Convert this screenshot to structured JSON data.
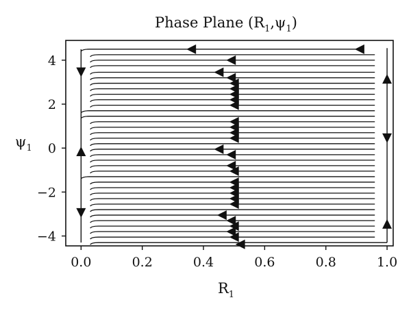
{
  "chart_data": {
    "type": "streamplot",
    "title": "Phase Plane (R",
    "title_sub1": "1",
    "title_mid": ",ψ",
    "title_sub2": "1",
    "title_end": ")",
    "xlabel": "R",
    "xlabel_sub": "1",
    "ylabel": "ψ",
    "ylabel_sub": "1",
    "xlim": [
      -0.05,
      1.02
    ],
    "ylim": [
      -4.45,
      4.9
    ],
    "xticks": [
      0.0,
      0.2,
      0.4,
      0.6,
      0.8,
      1.0
    ],
    "xtick_labels": [
      "0.0",
      "0.2",
      "0.4",
      "0.6",
      "0.8",
      "1.0"
    ],
    "yticks": [
      4,
      2,
      0,
      -2,
      -4
    ],
    "ytick_labels": [
      "4",
      "2",
      "0",
      "−2",
      "−4"
    ],
    "grid": false,
    "line_color": "#111111",
    "streamlines": [
      {
        "y": 4.5,
        "x_start": 0.92,
        "x_end": 0.0
      },
      {
        "y": 4.25,
        "x_start": 0.96,
        "x_end": 0.03
      },
      {
        "y": 4.0,
        "x_start": 0.96,
        "x_end": 0.03
      },
      {
        "y": 3.75,
        "x_start": 0.96,
        "x_end": 0.03
      },
      {
        "y": 3.45,
        "x_start": 0.96,
        "x_end": 0.03
      },
      {
        "y": 3.2,
        "x_start": 0.96,
        "x_end": 0.03
      },
      {
        "y": 2.95,
        "x_start": 0.96,
        "x_end": 0.03
      },
      {
        "y": 2.7,
        "x_start": 0.96,
        "x_end": 0.03
      },
      {
        "y": 2.45,
        "x_start": 0.96,
        "x_end": 0.03
      },
      {
        "y": 2.2,
        "x_start": 0.96,
        "x_end": 0.03
      },
      {
        "y": 1.95,
        "x_start": 0.96,
        "x_end": 0.03
      },
      {
        "y": 1.7,
        "x_start": 0.96,
        "x_end": 0.0
      },
      {
        "y": 1.45,
        "x_start": 0.96,
        "x_end": 0.0
      },
      {
        "y": 1.2,
        "x_start": 0.96,
        "x_end": 0.03
      },
      {
        "y": 0.95,
        "x_start": 0.96,
        "x_end": 0.03
      },
      {
        "y": 0.7,
        "x_start": 0.96,
        "x_end": 0.03
      },
      {
        "y": 0.45,
        "x_start": 0.96,
        "x_end": 0.03
      },
      {
        "y": 0.2,
        "x_start": 0.96,
        "x_end": 0.03
      },
      {
        "y": -0.05,
        "x_start": 0.96,
        "x_end": 0.03
      },
      {
        "y": -0.3,
        "x_start": 0.96,
        "x_end": 0.03
      },
      {
        "y": -0.55,
        "x_start": 0.96,
        "x_end": 0.03
      },
      {
        "y": -0.8,
        "x_start": 0.96,
        "x_end": 0.03
      },
      {
        "y": -1.05,
        "x_start": 0.96,
        "x_end": 0.03
      },
      {
        "y": -1.3,
        "x_start": 0.96,
        "x_end": 0.0
      },
      {
        "y": -1.55,
        "x_start": 0.96,
        "x_end": 0.03
      },
      {
        "y": -1.8,
        "x_start": 0.96,
        "x_end": 0.03
      },
      {
        "y": -2.05,
        "x_start": 0.96,
        "x_end": 0.03
      },
      {
        "y": -2.3,
        "x_start": 0.96,
        "x_end": 0.03
      },
      {
        "y": -2.55,
        "x_start": 0.96,
        "x_end": 0.03
      },
      {
        "y": -2.8,
        "x_start": 0.96,
        "x_end": 0.03
      },
      {
        "y": -3.05,
        "x_start": 0.96,
        "x_end": 0.03
      },
      {
        "y": -3.3,
        "x_start": 0.96,
        "x_end": 0.03
      },
      {
        "y": -3.55,
        "x_start": 0.96,
        "x_end": 0.03
      },
      {
        "y": -3.8,
        "x_start": 0.96,
        "x_end": 0.03
      },
      {
        "y": -4.05,
        "x_start": 0.96,
        "x_end": 0.03
      },
      {
        "y": -4.3,
        "x_start": 1.0,
        "x_end": 0.03
      }
    ],
    "vertical_lines": [
      {
        "x": 0.0,
        "y_from": 4.5,
        "y_to": -4.3
      },
      {
        "x": 1.0,
        "y_from": 4.55,
        "y_to": -4.3
      }
    ],
    "arrows": [
      {
        "x": 0.36,
        "y": 4.5,
        "dir": "left"
      },
      {
        "x": 0.91,
        "y": 4.5,
        "dir": "left"
      },
      {
        "x": 0.49,
        "y": 4.0,
        "dir": "left"
      },
      {
        "x": 0.45,
        "y": 3.45,
        "dir": "left"
      },
      {
        "x": 0.49,
        "y": 3.2,
        "dir": "left"
      },
      {
        "x": 0.5,
        "y": 2.95,
        "dir": "left"
      },
      {
        "x": 0.5,
        "y": 2.7,
        "dir": "left"
      },
      {
        "x": 0.5,
        "y": 2.45,
        "dir": "left"
      },
      {
        "x": 0.5,
        "y": 2.2,
        "dir": "left"
      },
      {
        "x": 0.5,
        "y": 1.95,
        "dir": "left"
      },
      {
        "x": 0.5,
        "y": 1.2,
        "dir": "left"
      },
      {
        "x": 0.5,
        "y": 0.95,
        "dir": "left"
      },
      {
        "x": 0.5,
        "y": 0.7,
        "dir": "left"
      },
      {
        "x": 0.5,
        "y": 0.45,
        "dir": "left"
      },
      {
        "x": 0.45,
        "y": -0.05,
        "dir": "left"
      },
      {
        "x": 0.49,
        "y": -0.3,
        "dir": "left"
      },
      {
        "x": 0.49,
        "y": -0.8,
        "dir": "left"
      },
      {
        "x": 0.5,
        "y": -1.05,
        "dir": "left"
      },
      {
        "x": 0.5,
        "y": -1.55,
        "dir": "left"
      },
      {
        "x": 0.5,
        "y": -1.8,
        "dir": "left"
      },
      {
        "x": 0.5,
        "y": -2.05,
        "dir": "left"
      },
      {
        "x": 0.5,
        "y": -2.3,
        "dir": "left"
      },
      {
        "x": 0.5,
        "y": -2.55,
        "dir": "left"
      },
      {
        "x": 0.46,
        "y": -3.05,
        "dir": "left"
      },
      {
        "x": 0.49,
        "y": -3.3,
        "dir": "left"
      },
      {
        "x": 0.5,
        "y": -3.55,
        "dir": "left"
      },
      {
        "x": 0.49,
        "y": -3.8,
        "dir": "left"
      },
      {
        "x": 0.5,
        "y": -4.05,
        "dir": "left"
      },
      {
        "x": 0.52,
        "y": -4.38,
        "dir": "left"
      },
      {
        "x": 0.0,
        "y": 3.45,
        "dir": "down"
      },
      {
        "x": 0.0,
        "y": -0.15,
        "dir": "up"
      },
      {
        "x": 0.0,
        "y": -2.95,
        "dir": "down"
      },
      {
        "x": 1.0,
        "y": 3.15,
        "dir": "up"
      },
      {
        "x": 1.0,
        "y": 0.45,
        "dir": "down"
      },
      {
        "x": 1.0,
        "y": -3.45,
        "dir": "up"
      }
    ]
  }
}
